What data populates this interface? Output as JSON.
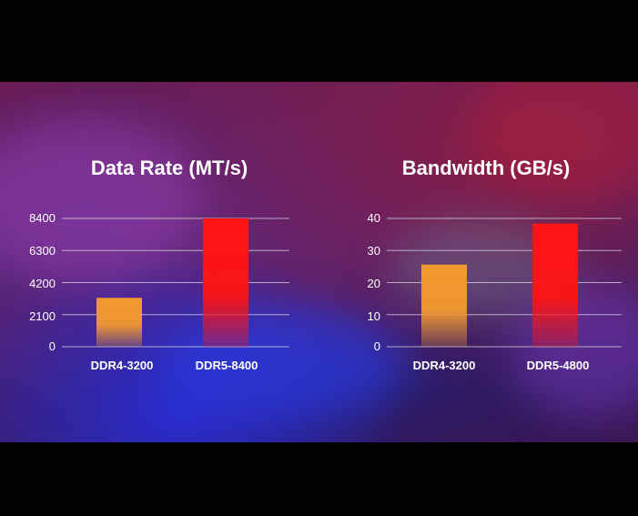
{
  "colors": {
    "ddr4_bar": "#f39a2e",
    "ddr5_bar": "#ff1414",
    "gridline": "#d8d8dc",
    "text": "#ffffff"
  },
  "chart_data": [
    {
      "type": "bar",
      "title": "Data Rate (MT/s)",
      "categories": [
        "DDR4-3200",
        "DDR5-8400"
      ],
      "values": [
        3200,
        8400
      ],
      "yticks": [
        "0",
        "2100",
        "4200",
        "6300",
        "8400"
      ],
      "ylim": [
        0,
        8400
      ],
      "xlabel": "",
      "ylabel": "",
      "grid": true
    },
    {
      "type": "bar",
      "title": "Bandwidth (GB/s)",
      "categories": [
        "DDR4-3200",
        "DDR5-4800"
      ],
      "values": [
        25.6,
        38.4
      ],
      "yticks": [
        "0",
        "10",
        "20",
        "30",
        "40"
      ],
      "ylim": [
        0,
        40
      ],
      "xlabel": "",
      "ylabel": "",
      "grid": true
    }
  ]
}
